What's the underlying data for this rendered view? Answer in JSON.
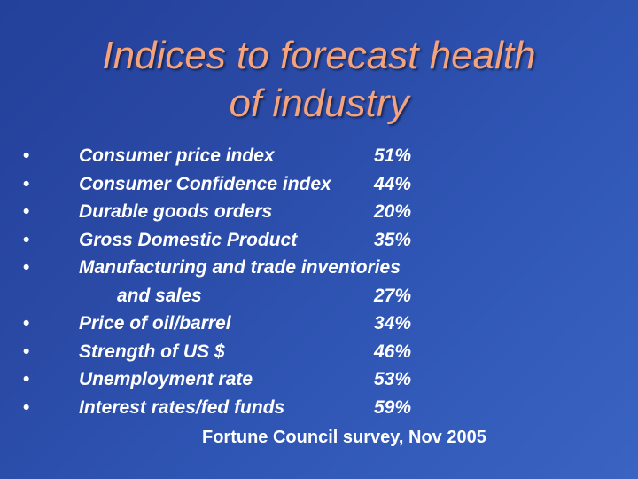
{
  "slide": {
    "title_line1": "Indices to forecast health",
    "title_line2": "of industry",
    "bullet": "•",
    "items": [
      {
        "label": "Consumer price index",
        "value": "51%"
      },
      {
        "label": "Consumer Confidence index",
        "value": "44%"
      },
      {
        "label": "Durable goods orders",
        "value": "20%"
      },
      {
        "label": "Gross Domestic Product",
        "value": "35%"
      },
      {
        "label": "Manufacturing and trade inventories",
        "label_cont": "and sales",
        "value": "27%"
      },
      {
        "label": "Price of oil/barrel",
        "value": "34%"
      },
      {
        "label": "Strength of US $",
        "value": "46%"
      },
      {
        "label": "Unemployment rate",
        "value": "53%"
      },
      {
        "label": "Interest rates/fed funds",
        "value": "59%"
      }
    ],
    "source": "Fortune Council survey, Nov 2005",
    "colors": {
      "title": "#f4a37c",
      "text": "#ffffff",
      "background": "#2a4aa6"
    }
  }
}
